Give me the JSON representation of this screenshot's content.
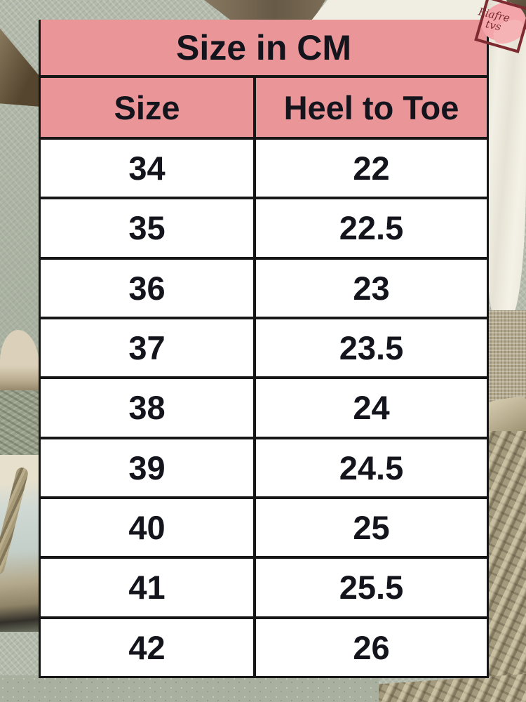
{
  "size_chart": {
    "title": "Size in CM",
    "columns": {
      "size": "Size",
      "heel_to_toe": "Heel to Toe"
    },
    "rows": [
      {
        "size": "34",
        "heel": "22"
      },
      {
        "size": "35",
        "heel": "22.5"
      },
      {
        "size": "36",
        "heel": "23"
      },
      {
        "size": "37",
        "heel": "23.5"
      },
      {
        "size": "38",
        "heel": "24"
      },
      {
        "size": "39",
        "heel": "24.5"
      },
      {
        "size": "40",
        "heel": "25"
      },
      {
        "size": "41",
        "heel": "25.5"
      },
      {
        "size": "42",
        "heel": "26"
      }
    ]
  },
  "chart_data": {
    "type": "table",
    "title": "Size in CM",
    "columns": [
      "Size",
      "Heel to Toe"
    ],
    "rows": [
      [
        "34",
        "22"
      ],
      [
        "35",
        "22.5"
      ],
      [
        "36",
        "23"
      ],
      [
        "37",
        "23.5"
      ],
      [
        "38",
        "24"
      ],
      [
        "39",
        "24.5"
      ],
      [
        "40",
        "25"
      ],
      [
        "41",
        "25.5"
      ],
      [
        "42",
        "26"
      ]
    ]
  },
  "watermark": {
    "line1": "Piafre",
    "line2": "tvs"
  },
  "colors": {
    "header_pink": "#ea9598",
    "table_border": "#161616",
    "cell_background": "#ffffff",
    "logo_maroon": "#7e2a31",
    "logo_brush_pink": "#f3a5a9",
    "mat_green": "#b5bcae",
    "basket_tan": "#a49a7d"
  }
}
